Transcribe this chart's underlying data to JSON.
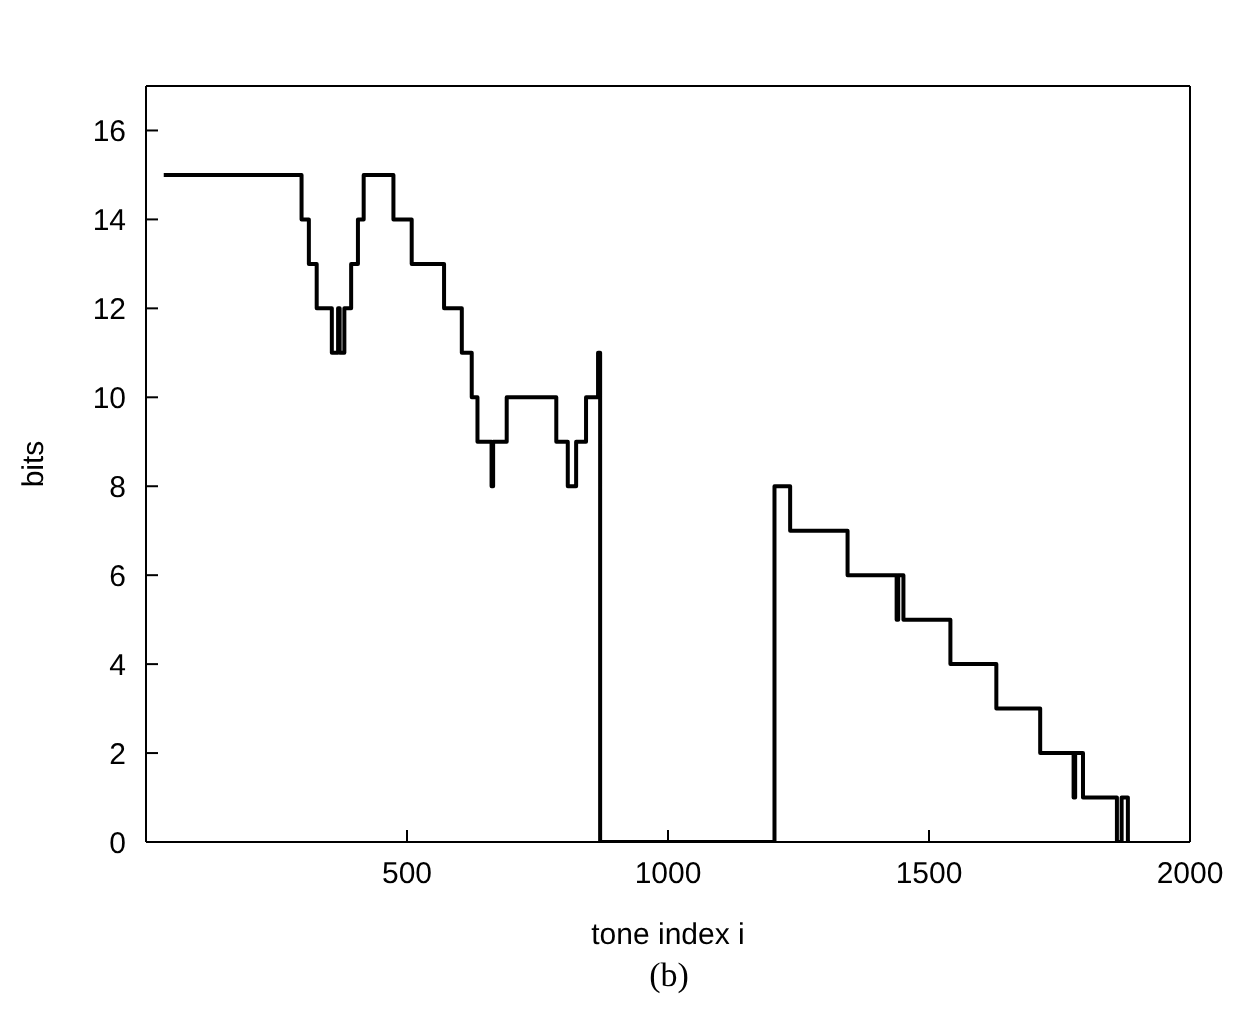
{
  "chart_data": {
    "type": "step",
    "xlabel": "tone index i",
    "ylabel": "bits",
    "annotations": [
      "(b)"
    ],
    "xlim": [
      0,
      2000
    ],
    "xticks": [
      {
        "value": 0,
        "label": null
      },
      500,
      1000,
      1500,
      2000
    ],
    "ylim": [
      0,
      17
    ],
    "yticks": [
      0,
      2,
      4,
      6,
      8,
      10,
      12,
      14,
      16
    ],
    "grid": false,
    "legend": false,
    "series": [
      {
        "color": "#000000",
        "x": [
          34,
          298,
          312,
          327,
          356,
          368,
          371,
          380,
          393,
          406,
          417,
          474,
          509,
          571,
          605,
          624,
          635,
          662,
          665,
          691,
          786,
          808,
          824,
          843,
          866,
          870,
          1204,
          1234,
          1344,
          1438,
          1441,
          1451,
          1541,
          1629,
          1713,
          1777,
          1780,
          1795,
          1860,
          1869,
          1881,
          1885
        ],
        "values": [
          15,
          14,
          13,
          12,
          11,
          12,
          11,
          12,
          13,
          14,
          15,
          14,
          13,
          12,
          11,
          10,
          9,
          8,
          9,
          10,
          9,
          8,
          9,
          10,
          11,
          0,
          8,
          7,
          6,
          5,
          6,
          5,
          4,
          3,
          2,
          1,
          2,
          1,
          0,
          1,
          0,
          0
        ]
      }
    ]
  }
}
